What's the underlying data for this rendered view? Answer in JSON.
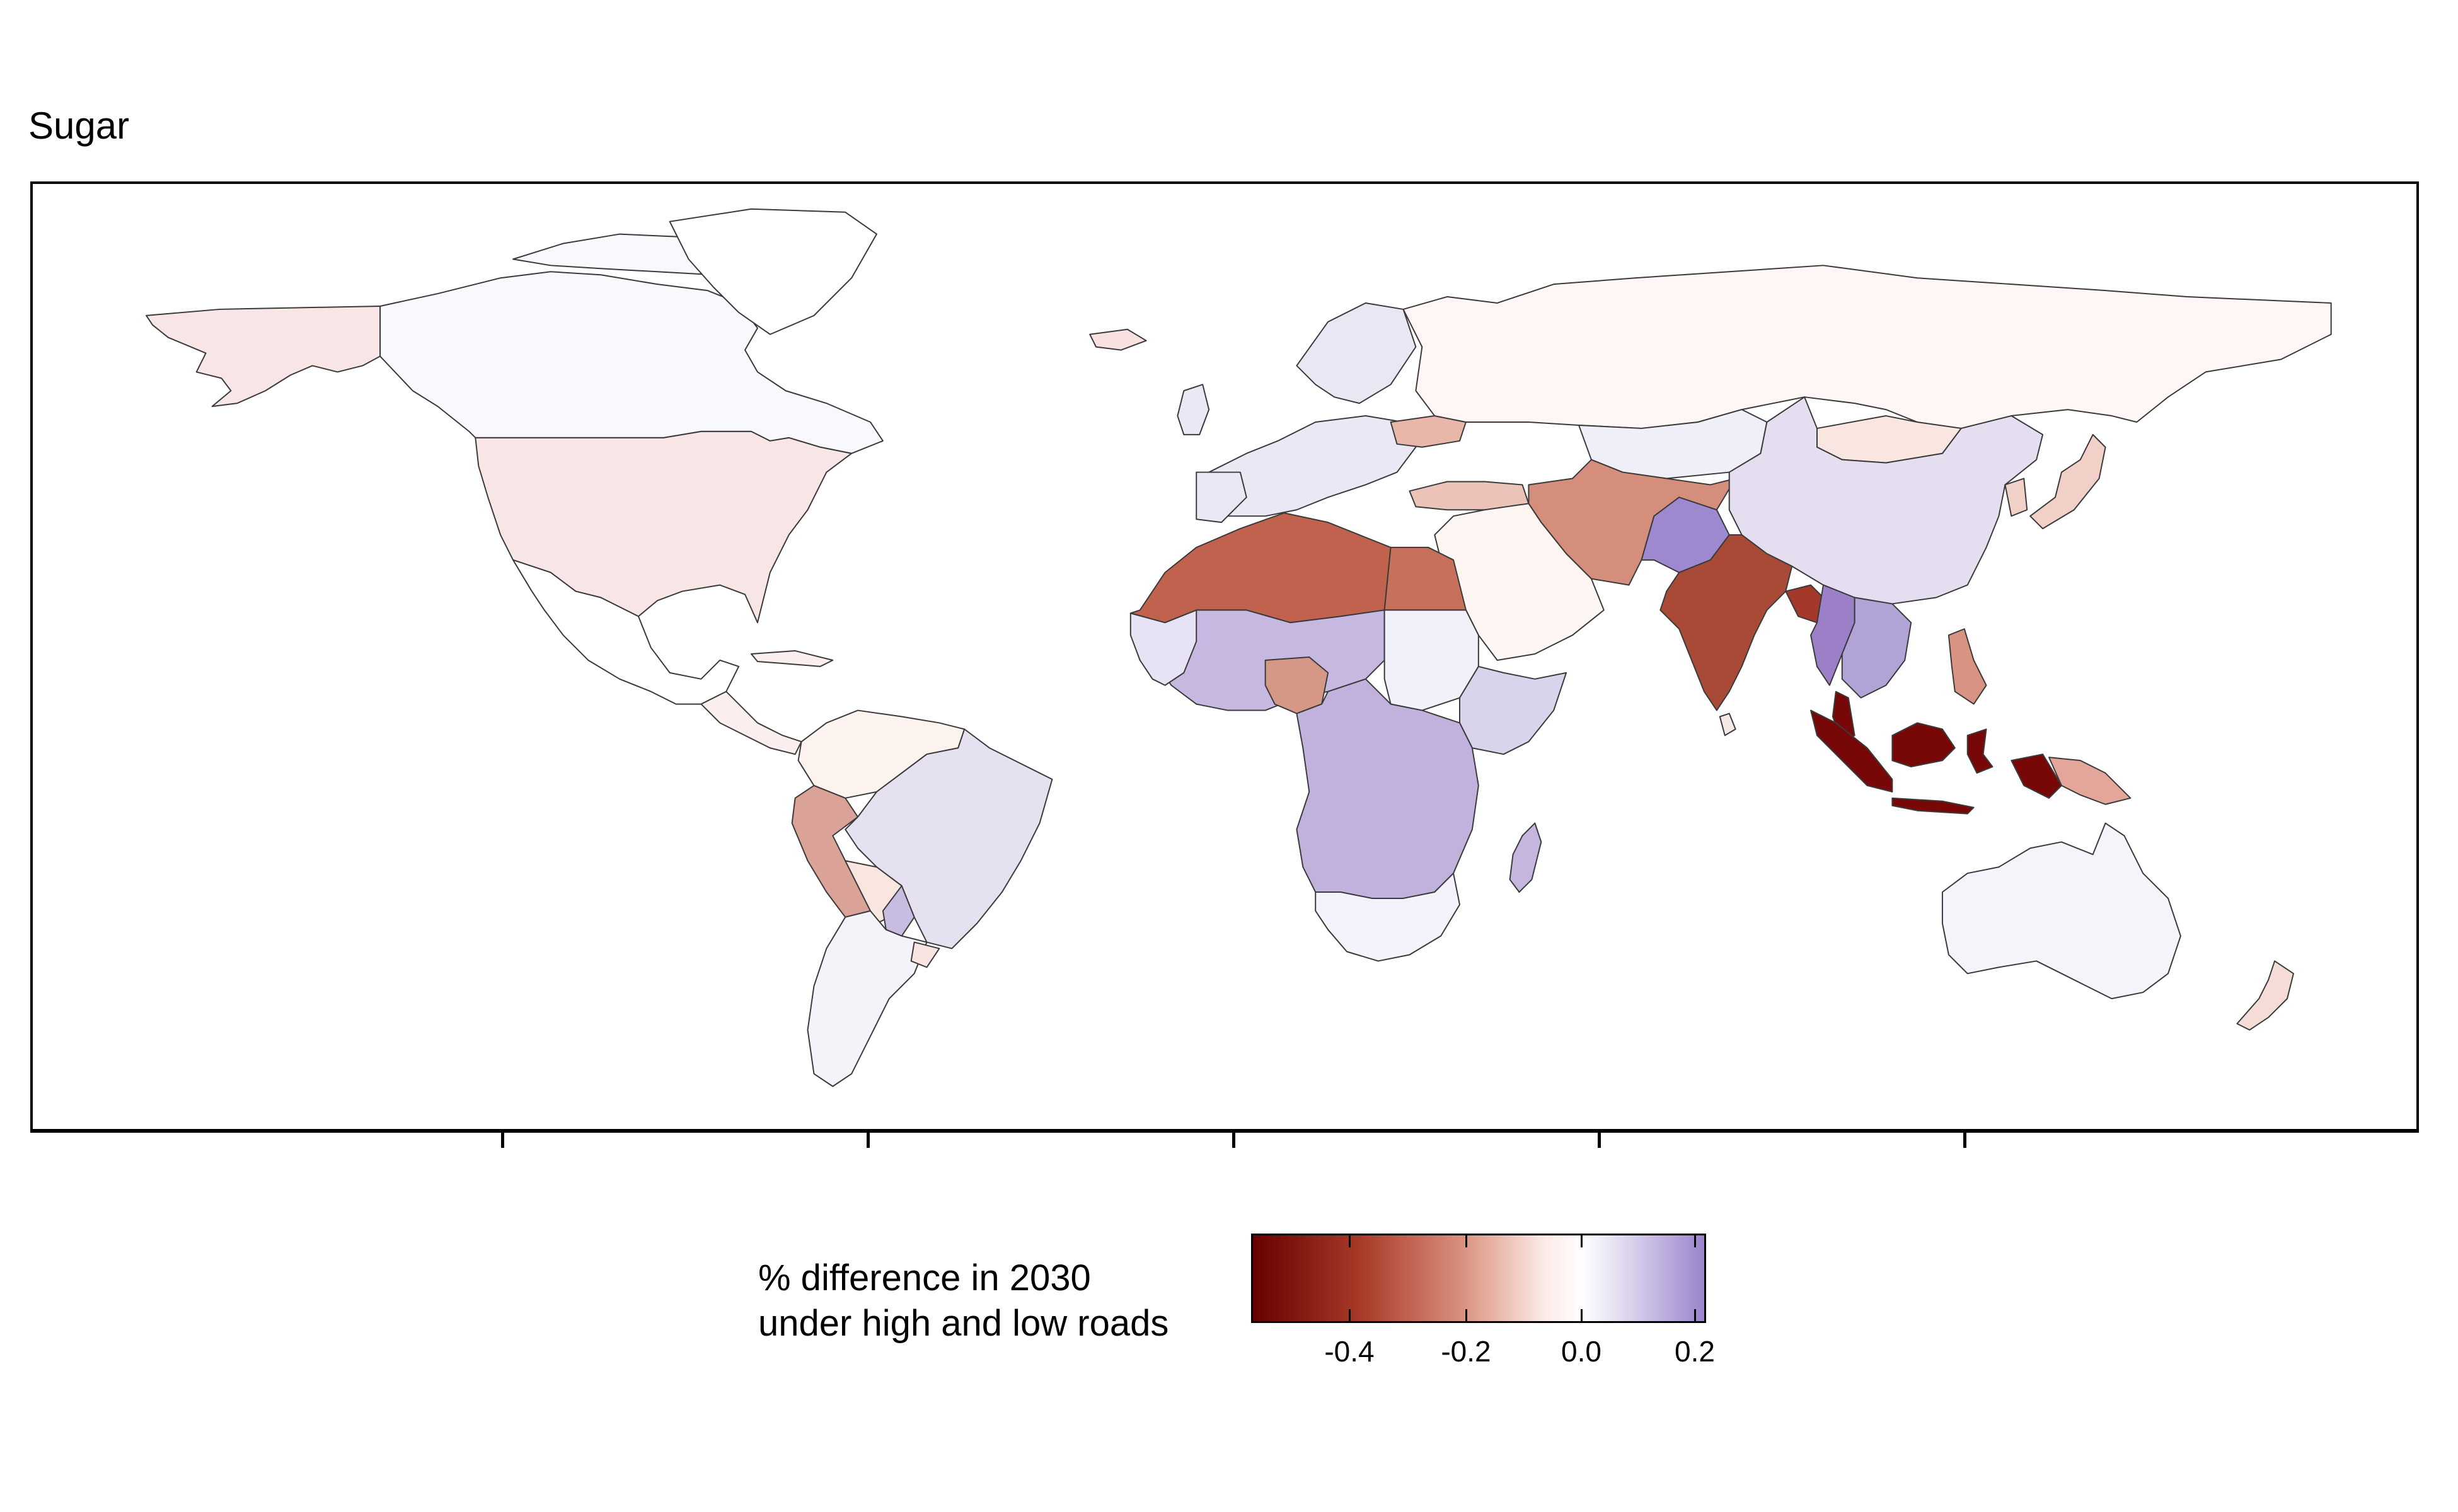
{
  "title": "Sugar",
  "legend": {
    "title_line1": "% difference in 2030",
    "title_line2": "under high and low roads",
    "ticks": [
      "-0.4",
      "-0.2",
      "0.0",
      "0.2"
    ],
    "colors": {
      "min": "#670000",
      "mid": "#ffffff",
      "max": "#9a84cc"
    }
  },
  "regions": [
    {
      "id": "alaska",
      "fill": "#f8e6e6"
    },
    {
      "id": "canada",
      "fill": "#f9f9fd"
    },
    {
      "id": "greenland",
      "fill": "#ffffff"
    },
    {
      "id": "usa",
      "fill": "#f8e6e6"
    },
    {
      "id": "mexico",
      "fill": "#ffffff"
    },
    {
      "id": "central-america",
      "fill": "#fbeeee"
    },
    {
      "id": "colombia-venezuela",
      "fill": "#fcf3ef"
    },
    {
      "id": "peru",
      "fill": "#dba397"
    },
    {
      "id": "brazil",
      "fill": "#e6e1f1"
    },
    {
      "id": "bolivia",
      "fill": "#f9e6e1"
    },
    {
      "id": "paraguay",
      "fill": "#c8bce0"
    },
    {
      "id": "argentina-chile",
      "fill": "#f5f3fa"
    },
    {
      "id": "uruguay",
      "fill": "#f8e4e1"
    },
    {
      "id": "iceland",
      "fill": "#f8e1de"
    },
    {
      "id": "scandinavia",
      "fill": "#eae7f4"
    },
    {
      "id": "western-europe",
      "fill": "#ebe8f5"
    },
    {
      "id": "russia",
      "fill": "#fff7f5"
    },
    {
      "id": "ukraine",
      "fill": "#e8b7aa"
    },
    {
      "id": "turkey",
      "fill": "#ebc3b8"
    },
    {
      "id": "iran-region",
      "fill": "#d58e7b"
    },
    {
      "id": "afghanistan",
      "fill": "#9e88cf"
    },
    {
      "id": "kazakhstan",
      "fill": "#f0eef8"
    },
    {
      "id": "mongolia",
      "fill": "#f9e6e1"
    },
    {
      "id": "china",
      "fill": "#e4def0"
    },
    {
      "id": "japan",
      "fill": "#f1d0c8"
    },
    {
      "id": "arabia",
      "fill": "#fdf6f3"
    },
    {
      "id": "north-africa",
      "fill": "#c0624e"
    },
    {
      "id": "egypt",
      "fill": "#c7705c"
    },
    {
      "id": "west-africa",
      "fill": "#c6b8e0"
    },
    {
      "id": "sahel-west",
      "fill": "#e7e3f4"
    },
    {
      "id": "nigeria",
      "fill": "#d59886"
    },
    {
      "id": "sudan",
      "fill": "#f2f0f9"
    },
    {
      "id": "ethiopia-somalia",
      "fill": "#dad3ec"
    },
    {
      "id": "central-africa",
      "fill": "#c0b2dc"
    },
    {
      "id": "southern-africa",
      "fill": "#f4f2fa"
    },
    {
      "id": "madagascar",
      "fill": "#c4b6df"
    },
    {
      "id": "india",
      "fill": "#a84a35"
    },
    {
      "id": "sri-lanka",
      "fill": "#f6e8e5"
    },
    {
      "id": "bangladesh",
      "fill": "#a4392b"
    },
    {
      "id": "myanmar",
      "fill": "#9b80c8"
    },
    {
      "id": "indochina",
      "fill": "#b2a3d6"
    },
    {
      "id": "philippines",
      "fill": "#d89383"
    },
    {
      "id": "indonesia",
      "fill": "#780808"
    },
    {
      "id": "png",
      "fill": "#e4a69a"
    },
    {
      "id": "australia",
      "fill": "#f5f4fb"
    },
    {
      "id": "new-zealand",
      "fill": "#f6dcd6"
    }
  ]
}
